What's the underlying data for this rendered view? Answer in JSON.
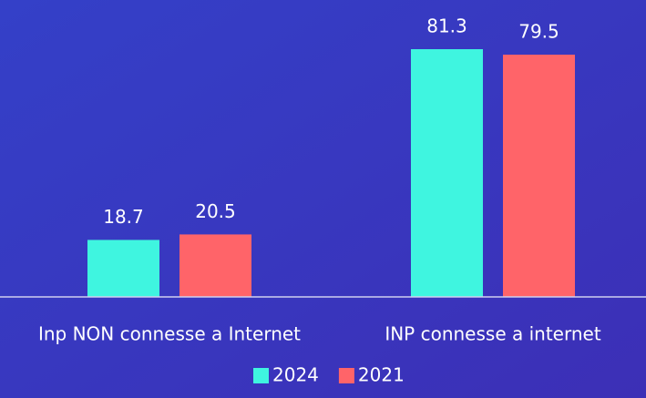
{
  "chart_data": {
    "type": "bar",
    "categories": [
      "Inp NON connesse a Internet",
      "INP connesse a internet"
    ],
    "series": [
      {
        "name": "2024",
        "color": "#3ff5e0",
        "values": [
          18.7,
          81.3
        ]
      },
      {
        "name": "2021",
        "color": "#ff6469",
        "values": [
          20.5,
          79.5
        ]
      }
    ]
  }
}
